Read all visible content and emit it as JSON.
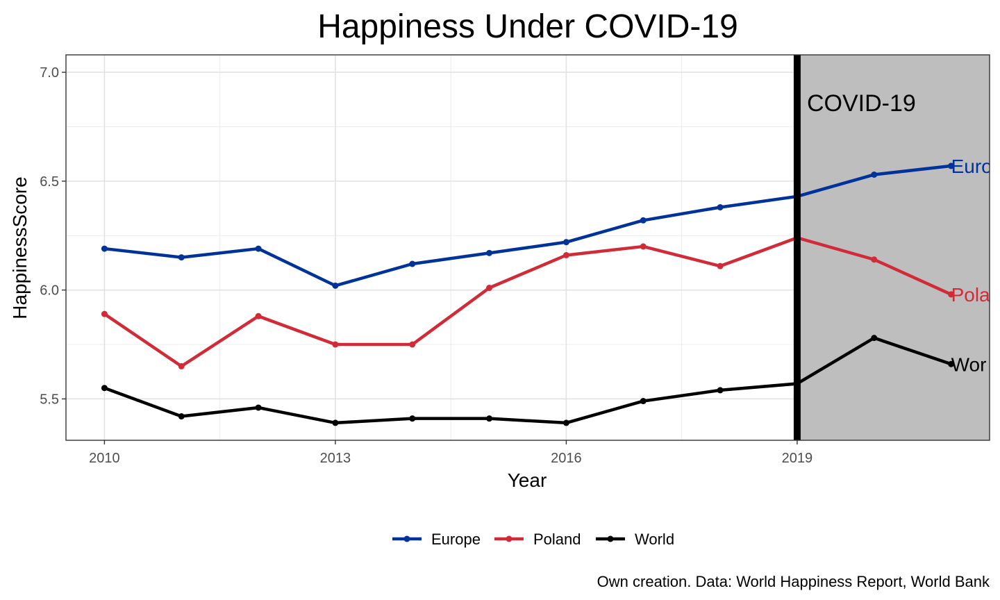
{
  "chart_data": {
    "type": "line",
    "title": "Happiness Under COVID-19",
    "xlabel": "Year",
    "ylabel": "HappinessScore",
    "caption": "Own creation. Data: World Happiness Report, World Bank",
    "x": [
      2010,
      2011,
      2012,
      2013,
      2014,
      2015,
      2016,
      2017,
      2018,
      2019,
      2020,
      2021
    ],
    "x_ticks": [
      2010,
      2013,
      2016,
      2019
    ],
    "y_ticks": [
      5.5,
      6.0,
      6.5,
      7.0
    ],
    "y_tick_labels": [
      "5.5",
      "6.0",
      "6.5",
      "7.0"
    ],
    "xlim": [
      2009.5,
      2021.5
    ],
    "ylim": [
      5.31,
      7.08
    ],
    "grid": true,
    "legend_position": "bottom",
    "series": [
      {
        "name": "Europe",
        "color": "#003399",
        "values": [
          6.19,
          6.15,
          6.19,
          6.02,
          6.12,
          6.17,
          6.22,
          6.32,
          6.38,
          6.43,
          6.53,
          6.57
        ],
        "end_label": "Euro"
      },
      {
        "name": "Poland",
        "color": "#d12b38",
        "values": [
          5.89,
          5.65,
          5.88,
          5.75,
          5.75,
          6.01,
          6.16,
          6.2,
          6.11,
          6.24,
          6.14,
          5.98
        ],
        "end_label": "Pola"
      },
      {
        "name": "World",
        "color": "#000000",
        "values": [
          5.55,
          5.42,
          5.46,
          5.39,
          5.41,
          5.41,
          5.39,
          5.49,
          5.54,
          5.57,
          5.78,
          5.66
        ],
        "end_label": "Wor"
      }
    ],
    "annotation": {
      "label": "COVID-19",
      "x_start": 2019,
      "x_end": 2021.5,
      "shade_color": "#bebebe",
      "line_color": "#000000"
    }
  }
}
